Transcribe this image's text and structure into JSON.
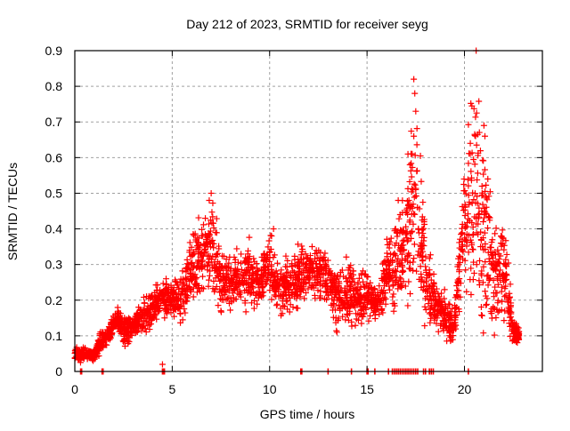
{
  "chart_data": {
    "type": "scatter",
    "title": "Day 212 of 2023, SRMTID for receiver seyg",
    "xlabel": "GPS time / hours",
    "ylabel": "SRMTID / TECUs",
    "xlim": [
      0,
      24
    ],
    "ylim": [
      0,
      0.9
    ],
    "xticks": [
      0,
      5,
      10,
      15,
      20
    ],
    "xtick_labels": [
      "0",
      "5",
      "10",
      "15",
      "20"
    ],
    "yticks": [
      0,
      0.1,
      0.2,
      0.3,
      0.4,
      0.5,
      0.6,
      0.7,
      0.8,
      0.9
    ],
    "ytick_labels": [
      "0",
      "0.1",
      "0.2",
      "0.3",
      "0.4",
      "0.5",
      "0.6",
      "0.7",
      "0.8",
      "0.9"
    ],
    "grid": true,
    "legend": "none",
    "marker": "plus",
    "series": [
      {
        "name": "SRMTID",
        "color": "#ff0000",
        "envelope": [
          [
            0.0,
            0.03,
            0.08
          ],
          [
            0.5,
            0.02,
            0.07
          ],
          [
            1.0,
            0.03,
            0.06
          ],
          [
            1.3,
            0.05,
            0.12
          ],
          [
            1.8,
            0.08,
            0.14
          ],
          [
            2.2,
            0.12,
            0.18
          ],
          [
            2.6,
            0.06,
            0.16
          ],
          [
            3.0,
            0.09,
            0.17
          ],
          [
            3.5,
            0.1,
            0.21
          ],
          [
            4.0,
            0.11,
            0.25
          ],
          [
            4.5,
            0.16,
            0.26
          ],
          [
            5.0,
            0.14,
            0.27
          ],
          [
            5.5,
            0.13,
            0.3
          ],
          [
            6.0,
            0.17,
            0.4
          ],
          [
            6.5,
            0.2,
            0.43
          ],
          [
            7.0,
            0.22,
            0.5
          ],
          [
            7.5,
            0.15,
            0.34
          ],
          [
            8.0,
            0.18,
            0.32
          ],
          [
            8.5,
            0.17,
            0.36
          ],
          [
            9.0,
            0.15,
            0.38
          ],
          [
            9.5,
            0.18,
            0.31
          ],
          [
            10.0,
            0.21,
            0.4
          ],
          [
            10.5,
            0.14,
            0.3
          ],
          [
            11.0,
            0.15,
            0.33
          ],
          [
            11.5,
            0.17,
            0.37
          ],
          [
            12.0,
            0.2,
            0.36
          ],
          [
            12.5,
            0.18,
            0.37
          ],
          [
            13.0,
            0.19,
            0.33
          ],
          [
            13.5,
            0.11,
            0.3
          ],
          [
            14.0,
            0.12,
            0.33
          ],
          [
            14.5,
            0.1,
            0.29
          ],
          [
            15.0,
            0.14,
            0.28
          ],
          [
            15.5,
            0.13,
            0.24
          ],
          [
            16.0,
            0.18,
            0.36
          ],
          [
            16.5,
            0.15,
            0.45
          ],
          [
            17.0,
            0.18,
            0.52
          ],
          [
            17.5,
            0.22,
            0.82
          ],
          [
            18.0,
            0.08,
            0.41
          ],
          [
            18.5,
            0.1,
            0.28
          ],
          [
            19.0,
            0.08,
            0.22
          ],
          [
            19.5,
            0.06,
            0.2
          ],
          [
            20.0,
            0.2,
            0.64
          ],
          [
            20.5,
            0.15,
            0.89
          ],
          [
            21.0,
            0.08,
            0.69
          ],
          [
            21.5,
            0.1,
            0.42
          ],
          [
            22.0,
            0.11,
            0.47
          ],
          [
            22.5,
            0.07,
            0.15
          ],
          [
            22.8,
            0.08,
            0.12
          ]
        ],
        "outliers": [
          [
            17.1,
            0.61
          ],
          [
            17.2,
            0.58
          ],
          [
            17.4,
            0.82
          ],
          [
            17.45,
            0.78
          ],
          [
            17.5,
            0.73
          ],
          [
            17.4,
            0.66
          ],
          [
            17.5,
            0.51
          ],
          [
            16.6,
            0.48
          ],
          [
            16.7,
            0.44
          ],
          [
            20.6,
            0.9
          ],
          [
            21.0,
            0.69
          ],
          [
            21.05,
            0.66
          ],
          [
            20.3,
            0.64
          ],
          [
            21.2,
            0.54
          ],
          [
            21.1,
            0.49
          ],
          [
            7.0,
            0.5
          ],
          [
            6.9,
            0.48
          ],
          [
            10.2,
            0.4
          ],
          [
            10.1,
            0.38
          ],
          [
            4.5,
            0.02
          ]
        ],
        "zero_points": [
          0.3,
          0.35,
          1.4,
          1.45,
          4.5,
          4.55,
          4.6,
          11.6,
          11.65,
          13.0,
          14.2,
          15.0,
          15.05,
          15.4,
          16.1,
          16.3,
          16.4,
          16.5,
          16.6,
          16.7,
          16.8,
          16.9,
          17.0,
          17.1,
          17.2,
          17.3,
          17.4,
          17.5,
          17.6,
          17.9,
          18.0,
          18.2,
          18.3,
          18.4,
          20.2
        ]
      }
    ]
  }
}
